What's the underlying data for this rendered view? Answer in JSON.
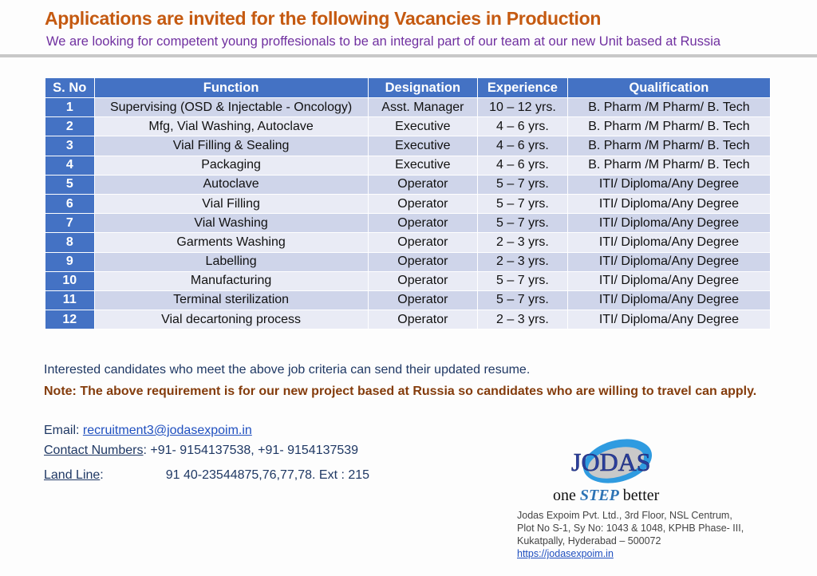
{
  "header": {
    "title": "Applications are invited for the following Vacancies in Production",
    "subtitle": "We are looking for competent young proffesionals to be an integral part of our team at our new Unit based at Russia"
  },
  "table": {
    "columns": [
      "S. No",
      "Function",
      "Designation",
      "Experience",
      "Qualification"
    ],
    "rows": [
      [
        "1",
        "Supervising (OSD & Injectable - Oncology)",
        "Asst. Manager",
        "10 – 12 yrs.",
        "B. Pharm /M Pharm/ B. Tech"
      ],
      [
        "2",
        "Mfg, Vial Washing, Autoclave",
        "Executive",
        "4 – 6 yrs.",
        "B. Pharm /M Pharm/ B. Tech"
      ],
      [
        "3",
        "Vial Filling & Sealing",
        "Executive",
        "4 – 6 yrs.",
        "B. Pharm /M Pharm/ B. Tech"
      ],
      [
        "4",
        "Packaging",
        "Executive",
        "4 – 6 yrs.",
        "B. Pharm /M Pharm/ B. Tech"
      ],
      [
        "5",
        "Autoclave",
        "Operator",
        "5 – 7 yrs.",
        "ITI/ Diploma/Any Degree"
      ],
      [
        "6",
        "Vial Filling",
        "Operator",
        "5 – 7 yrs.",
        "ITI/ Diploma/Any Degree"
      ],
      [
        "7",
        "Vial Washing",
        "Operator",
        "5 – 7 yrs.",
        "ITI/ Diploma/Any Degree"
      ],
      [
        "8",
        "Garments Washing",
        "Operator",
        "2 – 3 yrs.",
        "ITI/ Diploma/Any Degree"
      ],
      [
        "9",
        "Labelling",
        "Operator",
        "2 – 3 yrs.",
        "ITI/ Diploma/Any Degree"
      ],
      [
        "10",
        "Manufacturing",
        "Operator",
        "5 – 7 yrs.",
        "ITI/ Diploma/Any Degree"
      ],
      [
        "11",
        "Terminal sterilization",
        "Operator",
        "5 – 7 yrs.",
        "ITI/ Diploma/Any Degree"
      ],
      [
        "12",
        "Vial decartoning process",
        "Operator",
        "2 – 3 yrs.",
        "ITI/ Diploma/Any Degree"
      ]
    ]
  },
  "footer": {
    "interested": "Interested candidates who meet the above job criteria can send their updated resume.",
    "note": "Note: The above requirement is for our new project based at Russia so candidates who are willing to travel can apply.",
    "email_label": "Email: ",
    "email": "recruitment3@jodasexpoim.in",
    "contact_label": "Contact Numbers",
    "contact": ": +91- 9154137538, +91- 9154137539",
    "landline_label": "Land Line",
    "landline_colon": ":",
    "landline": "91 40-23544875,76,77,78. Ext : 215"
  },
  "company": {
    "logo_text": "JODAS",
    "tagline_pre": "one ",
    "tagline_em": "STEP",
    "tagline_post": " better",
    "address": [
      "Jodas Expoim Pvt. Ltd., 3rd Floor, NSL Centrum,",
      "Plot No S-1, Sy No: 1043 & 1048, KPHB Phase- III,",
      "Kukatpally, Hyderabad – 500072"
    ],
    "website": "https://jodasexpoim.in"
  }
}
